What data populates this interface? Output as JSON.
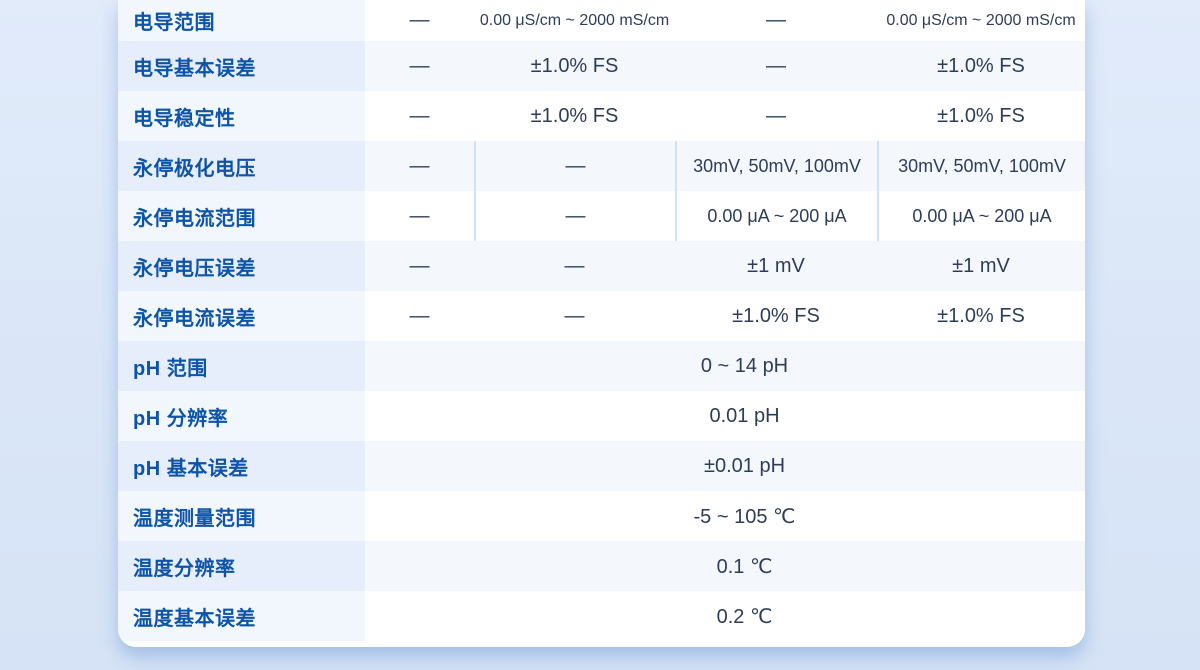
{
  "page": {
    "background": "#dbe7f8"
  },
  "colors": {
    "card-bg": "#ffffff",
    "label-text": "#0d54a9",
    "value-text": "#2e3d57",
    "row-label-odd": "#f2f7fd",
    "row-data-odd": "#ffffff",
    "row-label-even": "#e6eefb",
    "row-data-even": "#f4f8fd",
    "divider": "#cfe3f7"
  },
  "spec_table": {
    "rows": [
      {
        "label": "电导范围",
        "cells": [
          "—",
          "0.00 μS/cm ~ 2000 mS/cm",
          "—",
          "0.00 μS/cm ~ 2000 mS/cm"
        ]
      },
      {
        "label": "电导基本误差",
        "cells": [
          "—",
          "±1.0% FS",
          "—",
          "±1.0% FS"
        ]
      },
      {
        "label": "电导稳定性",
        "cells": [
          "—",
          "±1.0% FS",
          "—",
          "±1.0% FS"
        ]
      },
      {
        "label": "永停极化电压",
        "cells": [
          "—",
          "—",
          "30mV, 50mV, 100mV",
          "30mV, 50mV, 100mV"
        ],
        "dividers": true
      },
      {
        "label": "永停电流范围",
        "cells": [
          "—",
          "—",
          "0.00 μA ~ 200 μA",
          "0.00 μA ~ 200 μA"
        ],
        "dividers": true
      },
      {
        "label": "永停电压误差",
        "cells": [
          "—",
          "—",
          "±1 mV",
          "±1 mV"
        ]
      },
      {
        "label": "永停电流误差",
        "cells": [
          "—",
          "—",
          "±1.0% FS",
          "±1.0% FS"
        ]
      },
      {
        "label": "pH 范围",
        "merged": "0 ~ 14 pH"
      },
      {
        "label": "pH 分辨率",
        "merged": "0.01 pH"
      },
      {
        "label": "pH 基本误差",
        "merged": "±0.01 pH"
      },
      {
        "label": "温度测量范围",
        "merged": "-5 ~ 105 ℃"
      },
      {
        "label": "温度分辨率",
        "merged": "0.1 ℃"
      },
      {
        "label": "温度基本误差",
        "merged": "0.2 ℃"
      }
    ]
  }
}
